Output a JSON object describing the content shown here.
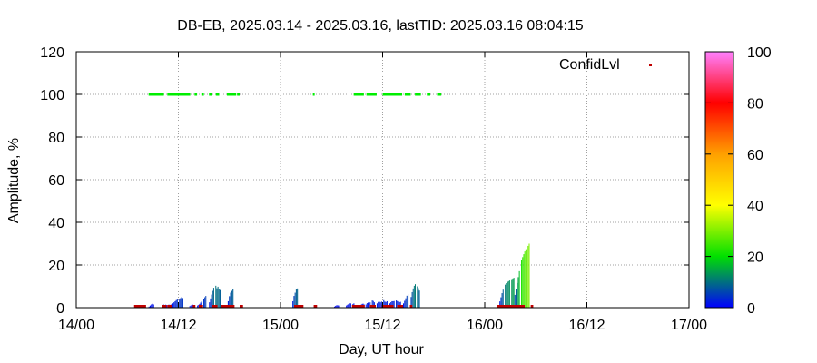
{
  "chart_data": {
    "type": "bar",
    "title": "DB-EB, 2025.03.14 - 2025.03.16, lastTID: 2025.03.16 08:04:15",
    "xlabel": "Day, UT hour",
    "ylabel": "Amplitude, %",
    "xlim": [
      0,
      72
    ],
    "ylim": [
      0,
      120
    ],
    "x_ticks": [
      {
        "value": 0,
        "label": "14/00"
      },
      {
        "value": 12,
        "label": "14/12"
      },
      {
        "value": 24,
        "label": "15/00"
      },
      {
        "value": 36,
        "label": "15/12"
      },
      {
        "value": 48,
        "label": "16/00"
      },
      {
        "value": 60,
        "label": "16/12"
      },
      {
        "value": 72,
        "label": "17/00"
      }
    ],
    "y_ticks": [
      0,
      20,
      40,
      60,
      80,
      100,
      120
    ],
    "grid": true,
    "legend": {
      "label": "ConfidLvl",
      "position": "top-right"
    },
    "colorbar": {
      "min": 0,
      "max": 100,
      "ticks": [
        0,
        20,
        40,
        60,
        80,
        100
      ]
    },
    "colors": {
      "background": "#ffffff",
      "axis": "#000000",
      "grid": "#a0a0a0",
      "low_amplitude_marker": "#c00000",
      "confidence_marker": "#00ee00"
    },
    "amplitude_segments": [
      {
        "start": 8.5,
        "end": 9.3,
        "values": [
          0.5,
          1.0,
          1.5,
          1.8,
          1.5,
          1.0
        ]
      },
      {
        "start": 10.1,
        "end": 11.2,
        "values": [
          1.0,
          1.5,
          1.2,
          1.5,
          1.0,
          1.5,
          1.2,
          1.5
        ]
      },
      {
        "start": 11.3,
        "end": 12.6,
        "values": [
          2.0,
          2.5,
          3.0,
          3.5,
          4.0,
          3.5,
          4.0,
          4.5,
          5.0,
          4.5
        ]
      },
      {
        "start": 13.3,
        "end": 13.9,
        "values": [
          0.8,
          1.2,
          1.5,
          1.0
        ]
      },
      {
        "start": 14.2,
        "end": 15.3,
        "values": [
          1.0,
          1.5,
          2.5,
          3.5,
          4.5,
          5.5
        ]
      },
      {
        "start": 15.6,
        "end": 17.1,
        "values": [
          2.5,
          5.0,
          7.5,
          9.5,
          11.0,
          9.0,
          10.0,
          8.0,
          9.0
        ]
      },
      {
        "start": 17.8,
        "end": 18.5,
        "values": [
          3.0,
          5.0,
          6.5,
          7.5,
          8.0,
          8.5
        ]
      },
      {
        "start": 25.4,
        "end": 26.2,
        "values": [
          3.0,
          5.5,
          7.0,
          8.5,
          9.0,
          9.5
        ]
      },
      {
        "start": 30.3,
        "end": 30.9,
        "values": [
          0.5,
          1.0,
          1.2,
          1.0
        ]
      },
      {
        "start": 31.7,
        "end": 32.7,
        "values": [
          1.0,
          1.5,
          2.0,
          2.0,
          1.5,
          2.0
        ]
      },
      {
        "start": 33.3,
        "end": 33.9,
        "values": [
          1.0,
          1.5,
          2.0,
          1.5
        ]
      },
      {
        "start": 34.0,
        "end": 35.1,
        "values": [
          1.5,
          2.5,
          2.0,
          3.0,
          3.5,
          2.5
        ]
      },
      {
        "start": 35.3,
        "end": 36.6,
        "values": [
          2.0,
          3.0,
          2.5,
          3.0,
          3.5,
          2.5,
          3.0
        ]
      },
      {
        "start": 36.8,
        "end": 38.3,
        "values": [
          2.0,
          3.0,
          3.0,
          3.5,
          3.0,
          2.5,
          3.0
        ]
      },
      {
        "start": 38.4,
        "end": 39.2,
        "values": [
          2.0,
          4.0,
          6.0,
          7.0
        ]
      },
      {
        "start": 39.3,
        "end": 40.4,
        "values": [
          5.0,
          8.0,
          10.0,
          11.0,
          10.5,
          9.5,
          8.0
        ]
      },
      {
        "start": 49.6,
        "end": 51.5,
        "values": [
          1.0,
          4.0,
          7.0,
          9.5,
          11.0,
          12.0,
          12.5,
          13.0,
          13.5,
          14.0
        ]
      },
      {
        "start": 51.5,
        "end": 53.3,
        "values": [
          6.0,
          10.0,
          14.0,
          18.0,
          22.0,
          24.0,
          26.0,
          27.5,
          28.5,
          30.0
        ]
      }
    ],
    "confidence_100_ranges": [
      [
        8.5,
        10.3
      ],
      [
        10.7,
        13.4
      ],
      [
        13.9,
        14.2
      ],
      [
        14.7,
        15.0
      ],
      [
        15.6,
        16.0
      ],
      [
        16.4,
        16.8
      ],
      [
        17.7,
        18.8
      ],
      [
        18.9,
        19.2
      ],
      [
        27.8,
        28.0
      ],
      [
        32.6,
        33.8
      ],
      [
        34.1,
        35.3
      ],
      [
        36.0,
        38.3
      ],
      [
        38.6,
        39.3
      ],
      [
        39.8,
        40.5
      ],
      [
        41.2,
        41.6
      ],
      [
        42.4,
        42.9
      ]
    ],
    "low_amplitude_ranges": [
      [
        6.8,
        8.2
      ],
      [
        10.1,
        10.6
      ],
      [
        10.7,
        11.3
      ],
      [
        13.7,
        14.0
      ],
      [
        14.4,
        14.9
      ],
      [
        16.0,
        16.6
      ],
      [
        17.0,
        18.6
      ],
      [
        19.2,
        19.6
      ],
      [
        25.6,
        26.7
      ],
      [
        27.9,
        28.3
      ],
      [
        32.4,
        33.5
      ],
      [
        33.4,
        33.9
      ],
      [
        34.5,
        35.2
      ],
      [
        35.9,
        37.0
      ],
      [
        36.2,
        37.3
      ],
      [
        37.7,
        38.4
      ],
      [
        39.2,
        39.5
      ],
      [
        49.5,
        49.8
      ],
      [
        49.5,
        52.7
      ],
      [
        53.4,
        53.7
      ]
    ]
  }
}
